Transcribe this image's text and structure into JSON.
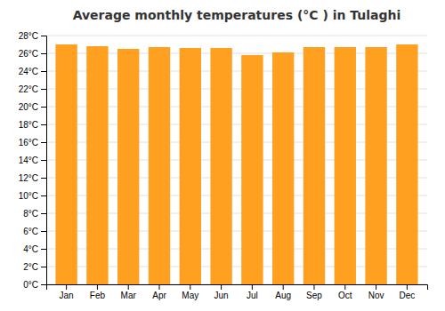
{
  "chart_data": {
    "type": "bar",
    "title": "Average monthly temperatures (°C ) in Tulaghi",
    "categories": [
      "Jan",
      "Feb",
      "Mar",
      "Apr",
      "May",
      "Jun",
      "Jul",
      "Aug",
      "Sep",
      "Oct",
      "Nov",
      "Dec"
    ],
    "values": [
      27.0,
      26.8,
      26.5,
      26.7,
      26.6,
      26.6,
      25.8,
      26.1,
      26.7,
      26.7,
      26.7,
      27.0
    ],
    "color": "#FFA020",
    "ylim": [
      0,
      28
    ],
    "yticks": [
      {
        "value": 0,
        "label": "0°C"
      },
      {
        "value": 2,
        "label": "2°C"
      },
      {
        "value": 4,
        "label": "4°C"
      },
      {
        "value": 6,
        "label": "6°C"
      },
      {
        "value": 8,
        "label": "8°C"
      },
      {
        "value": 10,
        "label": "10°C"
      },
      {
        "value": 12,
        "label": "12°C"
      },
      {
        "value": 14,
        "label": "14°C"
      },
      {
        "value": 16,
        "label": "16°C"
      },
      {
        "value": 18,
        "label": "18°C"
      },
      {
        "value": 20,
        "label": "20°C"
      },
      {
        "value": 22,
        "label": "22°C"
      },
      {
        "value": 24,
        "label": "24°C"
      },
      {
        "value": 26,
        "label": "26°C"
      },
      {
        "value": 28,
        "label": "28°C"
      }
    ],
    "grid": true
  }
}
